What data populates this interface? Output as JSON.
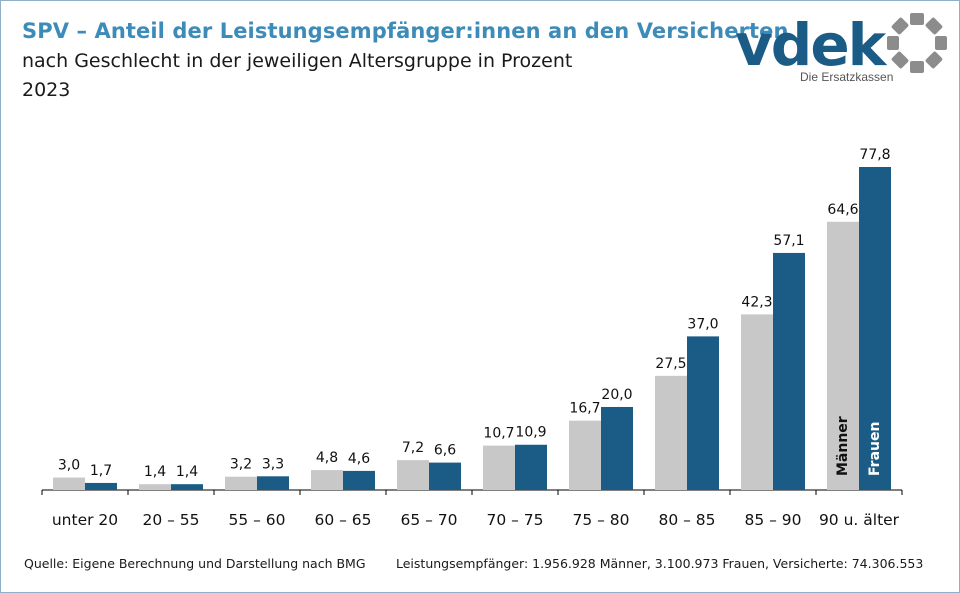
{
  "header": {
    "title": "SPV – Anteil der Leistungsempfänger:innen an den Versicherten",
    "subtitle": "nach Geschlecht in der jeweiligen Altersgruppe in Prozent",
    "year": "2023"
  },
  "logo": {
    "wordmark": "vdek",
    "tagline": "Die Ersatzkassen",
    "color": "#1a5c86",
    "ring_color": "#8c8c8c"
  },
  "colors": {
    "men": "#c8c8c8",
    "women": "#1a5c86",
    "title": "#3d8bb8"
  },
  "chart_data": {
    "type": "bar",
    "categories": [
      "unter 20",
      "20 – 55",
      "55 – 60",
      "60 – 65",
      "65 – 70",
      "70 – 75",
      "75 – 80",
      "80 – 85",
      "85 – 90",
      "90 u. älter"
    ],
    "series": [
      {
        "name": "Männer",
        "values": [
          3.0,
          1.4,
          3.2,
          4.8,
          7.2,
          10.7,
          16.7,
          27.5,
          42.3,
          64.6
        ],
        "labels": [
          "3,0",
          "1,4",
          "3,2",
          "4,8",
          "7,2",
          "10,7",
          "16,7",
          "27,5",
          "42,3",
          "64,6"
        ]
      },
      {
        "name": "Frauen",
        "values": [
          1.7,
          1.4,
          3.3,
          4.6,
          6.6,
          10.9,
          20.0,
          37.0,
          57.1,
          77.8
        ],
        "labels": [
          "1,7",
          "1,4",
          "3,3",
          "4,6",
          "6,6",
          "10,9",
          "20,0",
          "37,0",
          "57,1",
          "77,8"
        ]
      }
    ],
    "ylim": [
      0,
      77.8
    ],
    "grid": false,
    "legend": "inside last bar pair"
  },
  "footer": {
    "source": "Quelle: Eigene Berechnung und Darstellung nach BMG",
    "note": "Leistungsempfänger: 1.956.928 Männer, 3.100.973 Frauen, Versicherte: 74.306.553"
  }
}
